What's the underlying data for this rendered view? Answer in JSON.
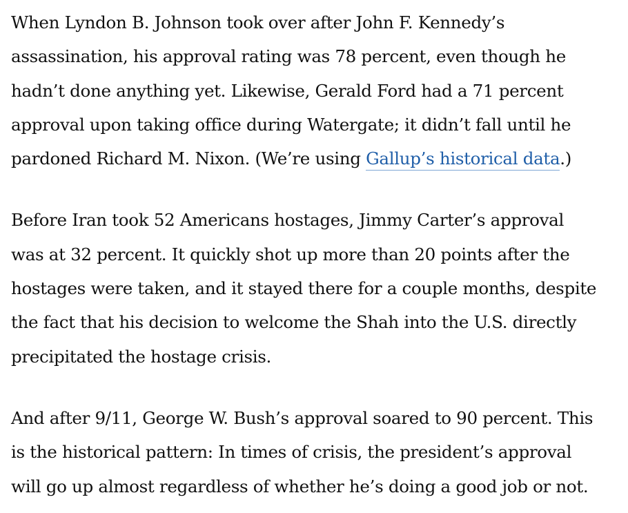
{
  "article": {
    "paragraphs": [
      {
        "lines": [
          "When Lyndon B. Johnson took over after John F. Kennedy’s",
          "assassination, his approval rating was 78 percent, even though he",
          "hadn’t done anything yet. Likewise, Gerald Ford had a 71 percent",
          "approval upon taking office during Watergate; it didn’t fall until he"
        ],
        "last_line": {
          "before": "pardoned Richard M. Nixon. (We’re using ",
          "link_text": "Gallup’s historical data",
          "after": ".)"
        }
      },
      {
        "lines": [
          "Before Iran took 52 Americans hostages, Jimmy Carter’s approval",
          "was at 32 percent. It quickly shot up more than 20 points after the",
          "hostages were taken, and it stayed there for a couple months, despite",
          "the fact that his decision to welcome the Shah into the U.S. directly",
          "precipitated the hostage crisis."
        ]
      },
      {
        "lines": [
          "And after 9/11, George W. Bush’s approval soared to 90 percent. This",
          "is the historical pattern: In times of crisis, the president’s approval",
          "will go up almost regardless of whether he’s doing a good job or not."
        ]
      }
    ]
  },
  "colors": {
    "text": "#111111",
    "link": "#1f5ea8",
    "background": "#ffffff"
  }
}
